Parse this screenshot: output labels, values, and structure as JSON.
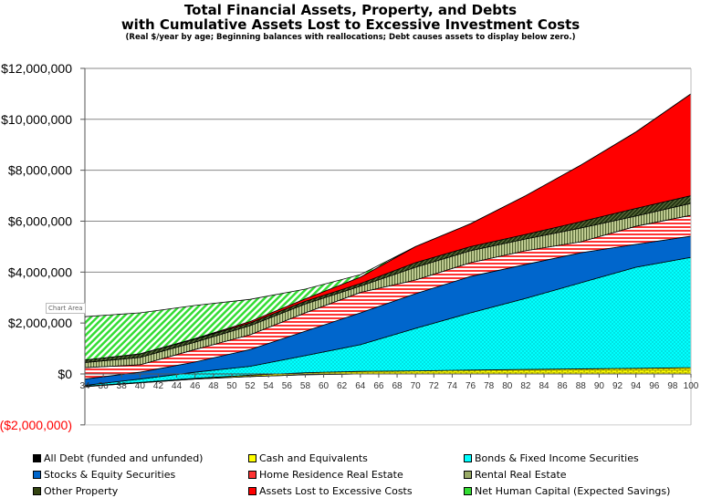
{
  "chart_data": {
    "type": "area",
    "stacked": true,
    "title": "Total Financial Assets, Property, and Debts",
    "title_line2": "with Cumulative Assets Lost to Excessive Investment Costs",
    "subtitle": "(Real $/year by age;  Beginning balances with reallocations; Debt causes assets to display below zero.)",
    "xlabel": "",
    "ylabel": "",
    "xlim": [
      34,
      100
    ],
    "ylim": [
      -2000000,
      12000000
    ],
    "x_ticks": [
      "34",
      "36",
      "38",
      "40",
      "42",
      "44",
      "46",
      "48",
      "50",
      "52",
      "54",
      "56",
      "58",
      "60",
      "62",
      "64",
      "66",
      "68",
      "70",
      "72",
      "74",
      "76",
      "78",
      "80",
      "82",
      "84",
      "86",
      "88",
      "90",
      "92",
      "94",
      "96",
      "98",
      "100"
    ],
    "y_ticks": [
      {
        "value": 12000000,
        "label": "$12,000,000"
      },
      {
        "value": 10000000,
        "label": "$10,000,000"
      },
      {
        "value": 8000000,
        "label": "$8,000,000"
      },
      {
        "value": 6000000,
        "label": "$6,000,000"
      },
      {
        "value": 4000000,
        "label": "$4,000,000"
      },
      {
        "value": 2000000,
        "label": "$2,000,000"
      },
      {
        "value": 0,
        "label": "$0"
      },
      {
        "value": -2000000,
        "label": "($2,000,000)"
      }
    ],
    "negative_label_color": "#ff0000",
    "grid": true,
    "legend_position": "bottom",
    "x": [
      34,
      40,
      46,
      52,
      58,
      64,
      70,
      76,
      82,
      88,
      94,
      100
    ],
    "series": [
      {
        "name": "All Debt (funded and unfunded)",
        "color": "#000000",
        "pattern": "diagonal-black",
        "values": [
          -500000,
          -350000,
          -200000,
          -100000,
          -30000,
          0,
          0,
          0,
          0,
          0,
          0,
          0
        ]
      },
      {
        "name": "Cash and Equivalents",
        "color": "#ffff00",
        "pattern": "brick-yellow",
        "values": [
          20000,
          20000,
          30000,
          50000,
          80000,
          100000,
          120000,
          150000,
          180000,
          200000,
          220000,
          250000
        ]
      },
      {
        "name": "Bonds & Fixed Income Securities",
        "color": "#00ffff",
        "pattern": "dots-cyan",
        "values": [
          30000,
          130000,
          240000,
          350000,
          670000,
          1050000,
          1670000,
          2250000,
          2790000,
          3380000,
          3970000,
          4330000
        ]
      },
      {
        "name": "Stocks & Equity Securities",
        "color": "#0066cc",
        "pattern": "solid",
        "values": [
          250000,
          270000,
          400000,
          660000,
          960000,
          1250000,
          1360000,
          1430000,
          1330000,
          1180000,
          900000,
          830000
        ]
      },
      {
        "name": "Home Residence Real Estate",
        "color": "#ff3333",
        "pattern": "hstripes-red",
        "values": [
          450000,
          290000,
          490000,
          580000,
          720000,
          800000,
          540000,
          540000,
          540000,
          430000,
          710000,
          820000
        ]
      },
      {
        "name": "Rental Real Estate",
        "color": "#99aa66",
        "pattern": "vstripes-olive",
        "values": [
          200000,
          290000,
          290000,
          360000,
          350000,
          250000,
          500000,
          470000,
          460000,
          540000,
          400000,
          470000
        ]
      },
      {
        "name": "Other Property",
        "color": "#334411",
        "pattern": "dark-green",
        "values": [
          100000,
          140000,
          120000,
          100000,
          100000,
          100000,
          180000,
          160000,
          180000,
          250000,
          300000,
          300000
        ]
      },
      {
        "name": "Assets Lost to Excessive Costs",
        "color": "#ff0000",
        "pattern": "solid",
        "values": [
          0,
          0,
          20000,
          60000,
          100000,
          250000,
          630000,
          900000,
          1520000,
          2220000,
          3000000,
          4000000
        ]
      },
      {
        "name": "Net Human Capital (Expected Savings)",
        "color": "#33dd33",
        "pattern": "diagonal-green",
        "values": [
          1700000,
          1610000,
          1300000,
          870000,
          380000,
          100000,
          0,
          0,
          0,
          0,
          0,
          0
        ]
      }
    ]
  },
  "tooltip": "Chart Area"
}
